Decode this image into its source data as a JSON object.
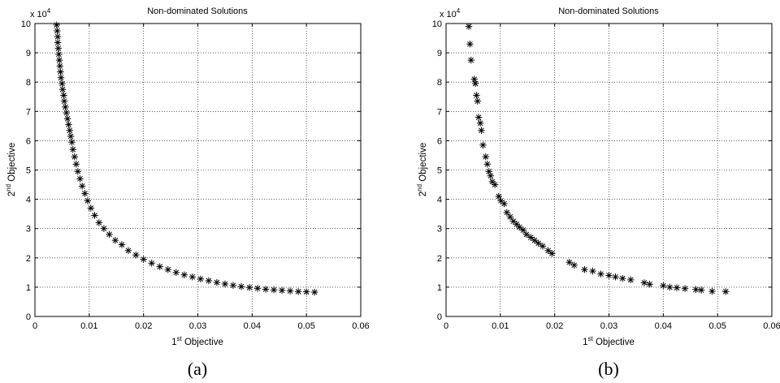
{
  "chart_data": [
    {
      "type": "scatter",
      "panel": "a",
      "title": "Non-dominated Solutions",
      "xlabel_sup_prefix": "1",
      "xlabel_sup": "st",
      "xlabel_rest": " Objective",
      "ylabel_sup_prefix": "2",
      "ylabel_sup": "nd",
      "ylabel_rest": " Objective",
      "y_multiplier": "x 10",
      "y_multiplier_exp": "4",
      "caption": "(a)",
      "xlim": [
        0,
        0.06
      ],
      "ylim": [
        0,
        10
      ],
      "xticks": [
        "0",
        "0.01",
        "0.02",
        "0.03",
        "0.04",
        "0.05",
        "0.06"
      ],
      "yticks": [
        "0",
        "1",
        "2",
        "3",
        "4",
        "5",
        "6",
        "7",
        "8",
        "9",
        "10"
      ],
      "grid": true,
      "marker": "asterisk",
      "points": [
        [
          0.004,
          9.95
        ],
        [
          0.0041,
          9.75
        ],
        [
          0.0042,
          9.55
        ],
        [
          0.0042,
          9.35
        ],
        [
          0.0043,
          9.15
        ],
        [
          0.0044,
          8.95
        ],
        [
          0.0045,
          8.75
        ],
        [
          0.0046,
          8.55
        ],
        [
          0.0047,
          8.35
        ],
        [
          0.0048,
          8.15
        ],
        [
          0.005,
          7.95
        ],
        [
          0.0051,
          7.75
        ],
        [
          0.0053,
          7.55
        ],
        [
          0.0054,
          7.35
        ],
        [
          0.0056,
          7.15
        ],
        [
          0.0058,
          6.95
        ],
        [
          0.006,
          6.75
        ],
        [
          0.0062,
          6.55
        ],
        [
          0.0064,
          6.35
        ],
        [
          0.0066,
          6.15
        ],
        [
          0.0068,
          5.95
        ],
        [
          0.007,
          5.7
        ],
        [
          0.0073,
          5.45
        ],
        [
          0.0076,
          5.2
        ],
        [
          0.0079,
          4.95
        ],
        [
          0.0083,
          4.7
        ],
        [
          0.0087,
          4.45
        ],
        [
          0.0092,
          4.2
        ],
        [
          0.0097,
          3.95
        ],
        [
          0.0103,
          3.7
        ],
        [
          0.011,
          3.45
        ],
        [
          0.0118,
          3.2
        ],
        [
          0.0127,
          3.0
        ],
        [
          0.0137,
          2.8
        ],
        [
          0.0148,
          2.6
        ],
        [
          0.016,
          2.45
        ],
        [
          0.0172,
          2.25
        ],
        [
          0.0186,
          2.1
        ],
        [
          0.02,
          1.95
        ],
        [
          0.0215,
          1.82
        ],
        [
          0.023,
          1.7
        ],
        [
          0.0245,
          1.6
        ],
        [
          0.026,
          1.5
        ],
        [
          0.0275,
          1.42
        ],
        [
          0.029,
          1.35
        ],
        [
          0.0305,
          1.28
        ],
        [
          0.032,
          1.22
        ],
        [
          0.0335,
          1.16
        ],
        [
          0.035,
          1.11
        ],
        [
          0.0365,
          1.06
        ],
        [
          0.038,
          1.02
        ],
        [
          0.0395,
          0.99
        ],
        [
          0.041,
          0.96
        ],
        [
          0.0425,
          0.93
        ],
        [
          0.044,
          0.91
        ],
        [
          0.0455,
          0.89
        ],
        [
          0.047,
          0.87
        ],
        [
          0.0485,
          0.85
        ],
        [
          0.05,
          0.84
        ],
        [
          0.0515,
          0.83
        ]
      ]
    },
    {
      "type": "scatter",
      "panel": "b",
      "title": "Non-dominated Solutions",
      "xlabel_sup_prefix": "1",
      "xlabel_sup": "st",
      "xlabel_rest": " Objective",
      "ylabel_sup_prefix": "2",
      "ylabel_sup": "nd",
      "ylabel_rest": " Objective",
      "y_multiplier": "x 10",
      "y_multiplier_exp": "4",
      "caption": "(b)",
      "xlim": [
        0,
        0.06
      ],
      "ylim": [
        0,
        10
      ],
      "xticks": [
        "0",
        "0.01",
        "0.02",
        "0.03",
        "0.04",
        "0.05",
        "0.06"
      ],
      "yticks": [
        "0",
        "1",
        "2",
        "3",
        "4",
        "5",
        "6",
        "7",
        "8",
        "9",
        "10"
      ],
      "grid": true,
      "marker": "asterisk",
      "points": [
        [
          0.0042,
          9.9
        ],
        [
          0.0044,
          9.3
        ],
        [
          0.0046,
          8.75
        ],
        [
          0.0052,
          8.1
        ],
        [
          0.0054,
          7.95
        ],
        [
          0.0056,
          7.55
        ],
        [
          0.0058,
          7.35
        ],
        [
          0.006,
          6.8
        ],
        [
          0.0063,
          6.6
        ],
        [
          0.0065,
          6.35
        ],
        [
          0.0068,
          5.85
        ],
        [
          0.0073,
          5.45
        ],
        [
          0.0076,
          5.2
        ],
        [
          0.0079,
          4.95
        ],
        [
          0.0082,
          4.8
        ],
        [
          0.0085,
          4.6
        ],
        [
          0.009,
          4.5
        ],
        [
          0.0097,
          4.1
        ],
        [
          0.0101,
          3.95
        ],
        [
          0.0107,
          3.85
        ],
        [
          0.0112,
          3.55
        ],
        [
          0.0118,
          3.4
        ],
        [
          0.0124,
          3.25
        ],
        [
          0.013,
          3.15
        ],
        [
          0.0135,
          3.05
        ],
        [
          0.0142,
          2.95
        ],
        [
          0.0148,
          2.8
        ],
        [
          0.0156,
          2.7
        ],
        [
          0.0163,
          2.6
        ],
        [
          0.017,
          2.5
        ],
        [
          0.0178,
          2.4
        ],
        [
          0.0188,
          2.25
        ],
        [
          0.0195,
          2.15
        ],
        [
          0.0227,
          1.85
        ],
        [
          0.0236,
          1.75
        ],
        [
          0.0255,
          1.6
        ],
        [
          0.027,
          1.55
        ],
        [
          0.0285,
          1.45
        ],
        [
          0.03,
          1.4
        ],
        [
          0.0312,
          1.35
        ],
        [
          0.0325,
          1.3
        ],
        [
          0.034,
          1.25
        ],
        [
          0.0365,
          1.15
        ],
        [
          0.0375,
          1.1
        ],
        [
          0.04,
          1.05
        ],
        [
          0.0412,
          1.0
        ],
        [
          0.0425,
          0.98
        ],
        [
          0.044,
          0.95
        ],
        [
          0.046,
          0.92
        ],
        [
          0.047,
          0.9
        ],
        [
          0.049,
          0.86
        ],
        [
          0.0515,
          0.85
        ]
      ]
    }
  ]
}
